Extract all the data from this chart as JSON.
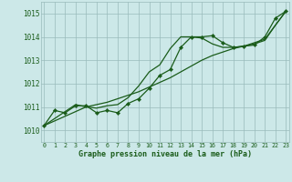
{
  "title": "Graphe pression niveau de la mer (hPa)",
  "xlabel_ticks": [
    0,
    1,
    2,
    3,
    4,
    5,
    6,
    7,
    8,
    9,
    10,
    11,
    12,
    13,
    14,
    15,
    16,
    17,
    18,
    19,
    20,
    21,
    22,
    23
  ],
  "ylim": [
    1009.5,
    1015.5
  ],
  "yticks": [
    1010,
    1011,
    1012,
    1013,
    1014,
    1015
  ],
  "xlim": [
    -0.3,
    23.3
  ],
  "bg_color": "#cce8e8",
  "grid_color": "#99bbbb",
  "line_color": "#1a5c1a",
  "marker_color": "#1a5c1a",
  "text_color": "#1a5c1a",
  "series1_x": [
    0,
    1,
    2,
    3,
    4,
    5,
    6,
    7,
    8,
    9,
    10,
    11,
    12,
    13,
    14,
    15,
    16,
    17,
    18,
    19,
    20,
    21,
    22,
    23
  ],
  "series1_y": [
    1010.2,
    1010.85,
    1010.75,
    1011.05,
    1011.05,
    1010.75,
    1010.85,
    1010.75,
    1011.15,
    1011.35,
    1011.8,
    1012.35,
    1012.6,
    1013.55,
    1014.0,
    1014.0,
    1014.05,
    1013.75,
    1013.55,
    1013.6,
    1013.65,
    1014.0,
    1014.8,
    1015.1
  ],
  "series2_x": [
    0,
    1,
    2,
    3,
    4,
    5,
    6,
    7,
    8,
    9,
    10,
    11,
    12,
    13,
    14,
    15,
    16,
    17,
    18,
    19,
    20,
    21,
    22,
    23
  ],
  "series2_y": [
    1010.2,
    1010.4,
    1010.6,
    1010.8,
    1011.0,
    1011.1,
    1011.2,
    1011.35,
    1011.5,
    1011.65,
    1011.85,
    1012.05,
    1012.25,
    1012.5,
    1012.75,
    1013.0,
    1013.2,
    1013.35,
    1013.5,
    1013.6,
    1013.75,
    1013.9,
    1014.5,
    1015.1
  ],
  "series3_x": [
    0,
    1,
    2,
    3,
    4,
    5,
    6,
    7,
    8,
    9,
    10,
    11,
    12,
    13,
    14,
    15,
    16,
    17,
    18,
    19,
    20,
    21,
    22,
    23
  ],
  "series3_y": [
    1010.2,
    1010.5,
    1010.8,
    1011.1,
    1011.0,
    1010.95,
    1011.05,
    1011.1,
    1011.4,
    1011.9,
    1012.5,
    1012.8,
    1013.5,
    1014.0,
    1014.0,
    1013.95,
    1013.7,
    1013.55,
    1013.55,
    1013.6,
    1013.7,
    1013.85,
    1014.5,
    1015.1
  ],
  "lw": 0.9
}
